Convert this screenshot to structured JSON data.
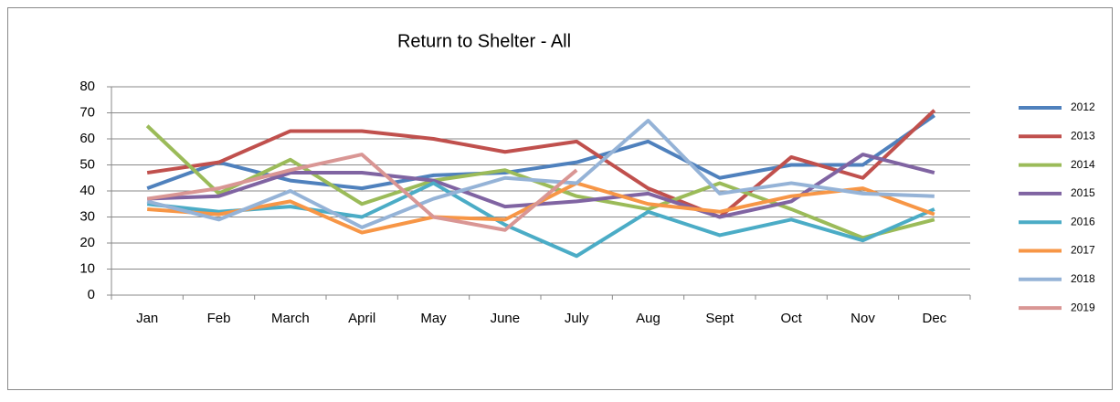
{
  "chart_data": {
    "type": "line",
    "title": "Return to Shelter - All",
    "categories": [
      "Jan",
      "Feb",
      "March",
      "April",
      "May",
      "June",
      "July",
      "Aug",
      "Sept",
      "Oct",
      "Nov",
      "Dec"
    ],
    "series": [
      {
        "name": "2012",
        "color": "#4f81bd",
        "values": [
          41,
          51,
          44,
          41,
          46,
          47,
          51,
          59,
          45,
          50,
          50,
          69
        ]
      },
      {
        "name": "2013",
        "color": "#c0504d",
        "values": [
          47,
          51,
          63,
          63,
          60,
          55,
          59,
          41,
          30,
          53,
          45,
          71
        ]
      },
      {
        "name": "2014",
        "color": "#9bbb59",
        "values": [
          65,
          39,
          52,
          35,
          44,
          48,
          38,
          33,
          43,
          33,
          22,
          29
        ]
      },
      {
        "name": "2015",
        "color": "#8064a2",
        "values": [
          37,
          38,
          47,
          47,
          44,
          34,
          36,
          39,
          30,
          36,
          54,
          47
        ]
      },
      {
        "name": "2016",
        "color": "#4bacc6",
        "values": [
          35,
          32,
          34,
          30,
          43,
          27,
          15,
          32,
          23,
          29,
          21,
          33
        ]
      },
      {
        "name": "2017",
        "color": "#f79646",
        "values": [
          33,
          31,
          36,
          24,
          30,
          29,
          43,
          35,
          32,
          38,
          41,
          31
        ]
      },
      {
        "name": "2018",
        "color": "#95b3d7",
        "values": [
          36,
          29,
          40,
          26,
          37,
          45,
          43,
          67,
          39,
          43,
          39,
          38
        ]
      },
      {
        "name": "2019",
        "color": "#d99694",
        "values": [
          37,
          41,
          48,
          54,
          30,
          25,
          48,
          null,
          null,
          null,
          null,
          null
        ]
      }
    ],
    "ylim": [
      0,
      80
    ],
    "yticks": [
      0,
      10,
      20,
      30,
      40,
      50,
      60,
      70,
      80
    ],
    "grid": true,
    "legend": "right"
  }
}
